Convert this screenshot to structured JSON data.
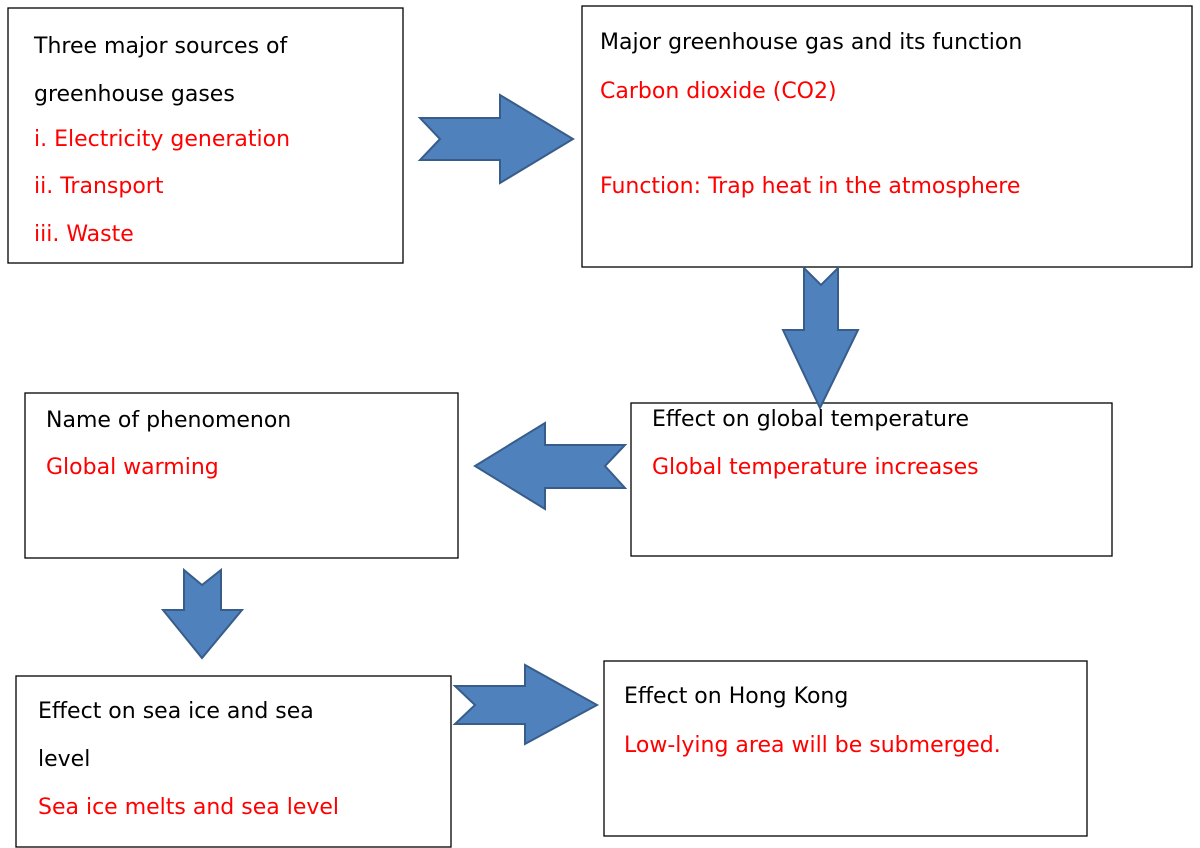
{
  "nodes": [
    {
      "title": [
        "Three major sources of",
        "greenhouse gases"
      ],
      "answer": [
        "i. Electricity generation",
        "ii. Transport",
        "iii. Waste"
      ]
    },
    {
      "title": [
        "Major greenhouse gas and its function"
      ],
      "answer": [
        "Carbon dioxide (CO2)",
        "Function: Trap heat in the atmosphere"
      ]
    },
    {
      "title": [
        "Effect on global temperature"
      ],
      "answer": [
        "Global temperature increases"
      ]
    },
    {
      "title": [
        "Name of phenomenon"
      ],
      "answer": [
        "Global warming"
      ]
    },
    {
      "title": [
        "Effect on sea ice and sea",
        "level"
      ],
      "answer": [
        "Sea ice melts and sea level"
      ]
    },
    {
      "title": [
        "Effect on Hong Kong"
      ],
      "answer": [
        "Low-lying area will be submerged."
      ]
    }
  ]
}
